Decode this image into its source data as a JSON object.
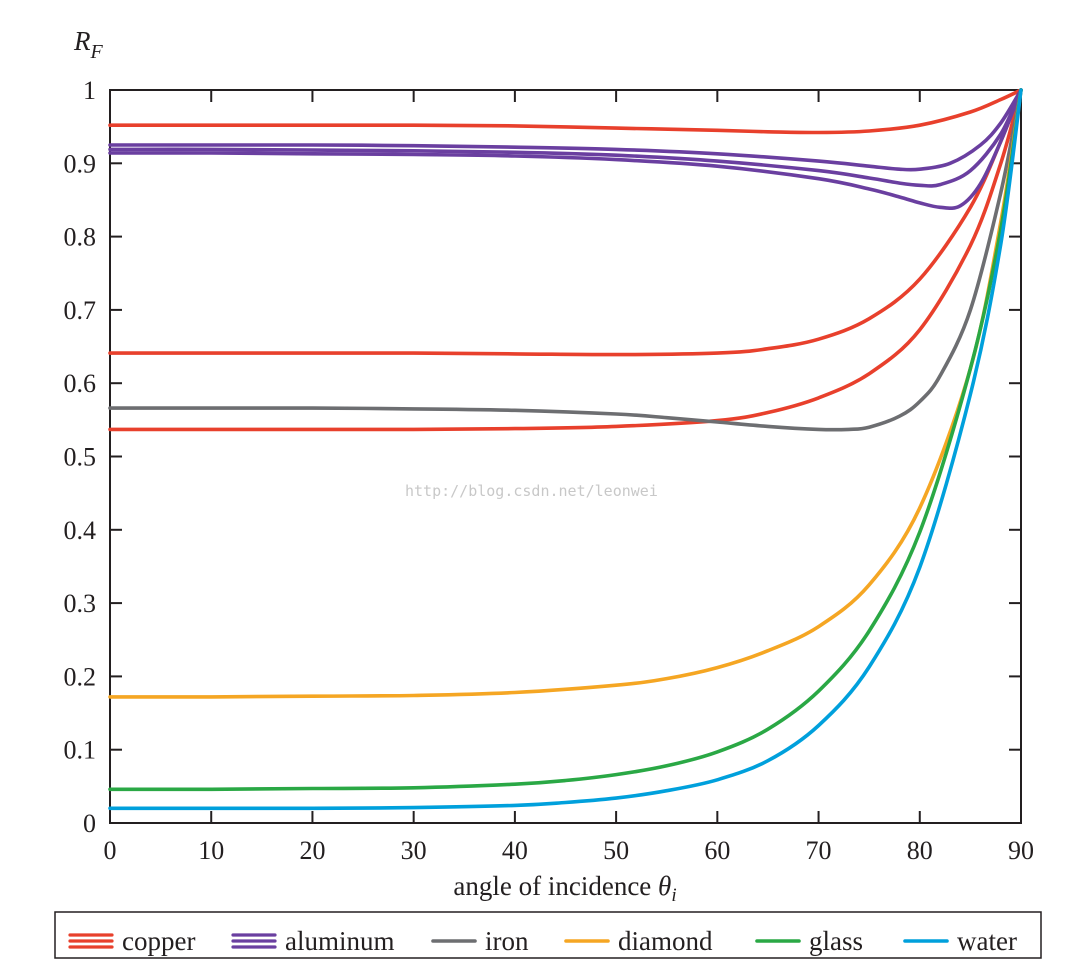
{
  "chart_data": {
    "type": "line",
    "ylabel_main": "R",
    "ylabel_sub": "F",
    "xlabel_main": "angle of incidence ",
    "xlabel_theta": "θ",
    "xlabel_sub": "i",
    "xlim": [
      0,
      90
    ],
    "ylim": [
      0,
      1
    ],
    "x_ticks": [
      "0",
      "10",
      "20",
      "30",
      "40",
      "50",
      "60",
      "70",
      "80",
      "90"
    ],
    "y_ticks": [
      "0",
      "0.1",
      "0.2",
      "0.3",
      "0.4",
      "0.5",
      "0.6",
      "0.7",
      "0.8",
      "0.9",
      "1"
    ],
    "grid": false,
    "legend_position": "bottom",
    "watermark": "http://blog.csdn.net/leonwei",
    "series": [
      {
        "name": "copper",
        "color": "#e8402c",
        "x": [
          0,
          10,
          20,
          30,
          40,
          50,
          60,
          65,
          70,
          75,
          80,
          85,
          88,
          90
        ],
        "values": [
          0.952,
          0.952,
          0.952,
          0.952,
          0.951,
          0.948,
          0.945,
          0.943,
          0.942,
          0.944,
          0.952,
          0.97,
          0.987,
          1.0
        ]
      },
      {
        "name": "copper",
        "color": "#e8402c",
        "x": [
          0,
          10,
          20,
          30,
          40,
          50,
          60,
          65,
          70,
          75,
          80,
          85,
          88,
          90
        ],
        "values": [
          0.641,
          0.641,
          0.641,
          0.641,
          0.64,
          0.639,
          0.641,
          0.647,
          0.66,
          0.688,
          0.742,
          0.84,
          0.93,
          1.0
        ]
      },
      {
        "name": "copper",
        "color": "#e8402c",
        "x": [
          0,
          10,
          20,
          30,
          40,
          50,
          60,
          65,
          70,
          75,
          80,
          85,
          88,
          90
        ],
        "values": [
          0.537,
          0.537,
          0.537,
          0.537,
          0.538,
          0.541,
          0.549,
          0.56,
          0.58,
          0.613,
          0.673,
          0.788,
          0.9,
          1.0
        ]
      },
      {
        "name": "aluminum",
        "color": "#6a3fa0",
        "x": [
          0,
          10,
          20,
          30,
          40,
          50,
          60,
          70,
          75,
          78,
          80,
          83,
          86,
          88,
          90
        ],
        "values": [
          0.925,
          0.925,
          0.925,
          0.924,
          0.922,
          0.919,
          0.913,
          0.903,
          0.896,
          0.892,
          0.892,
          0.9,
          0.925,
          0.955,
          1.0
        ]
      },
      {
        "name": "aluminum",
        "color": "#6a3fa0",
        "x": [
          0,
          10,
          20,
          30,
          40,
          50,
          60,
          70,
          75,
          78,
          80,
          82,
          85,
          88,
          90
        ],
        "values": [
          0.919,
          0.919,
          0.918,
          0.917,
          0.915,
          0.911,
          0.903,
          0.89,
          0.88,
          0.873,
          0.87,
          0.871,
          0.89,
          0.94,
          1.0
        ]
      },
      {
        "name": "aluminum",
        "color": "#6a3fa0",
        "x": [
          0,
          10,
          20,
          30,
          40,
          50,
          60,
          70,
          75,
          78,
          80,
          82,
          84,
          86,
          88,
          90
        ],
        "values": [
          0.914,
          0.914,
          0.913,
          0.912,
          0.91,
          0.905,
          0.896,
          0.879,
          0.865,
          0.854,
          0.846,
          0.84,
          0.842,
          0.872,
          0.93,
          1.0
        ]
      },
      {
        "name": "iron",
        "color": "#6d6e71",
        "x": [
          0,
          10,
          20,
          30,
          40,
          50,
          55,
          60,
          65,
          70,
          73,
          75,
          78,
          80,
          82,
          85,
          88,
          90
        ],
        "values": [
          0.566,
          0.566,
          0.566,
          0.565,
          0.563,
          0.558,
          0.553,
          0.547,
          0.541,
          0.537,
          0.537,
          0.54,
          0.555,
          0.575,
          0.61,
          0.7,
          0.86,
          1.0
        ]
      },
      {
        "name": "diamond",
        "color": "#f5a623",
        "x": [
          0,
          10,
          20,
          30,
          40,
          50,
          55,
          60,
          65,
          70,
          75,
          80,
          85,
          88,
          90
        ],
        "values": [
          0.172,
          0.172,
          0.173,
          0.174,
          0.178,
          0.188,
          0.197,
          0.212,
          0.235,
          0.268,
          0.325,
          0.43,
          0.62,
          0.82,
          1.0
        ]
      },
      {
        "name": "glass",
        "color": "#2aa845",
        "x": [
          0,
          10,
          20,
          30,
          40,
          45,
          50,
          55,
          60,
          65,
          70,
          75,
          80,
          85,
          88,
          90
        ],
        "values": [
          0.046,
          0.046,
          0.047,
          0.048,
          0.053,
          0.058,
          0.066,
          0.078,
          0.097,
          0.128,
          0.18,
          0.262,
          0.397,
          0.62,
          0.81,
          1.0
        ]
      },
      {
        "name": "water",
        "color": "#00a0dc",
        "x": [
          0,
          10,
          20,
          30,
          40,
          45,
          50,
          55,
          60,
          65,
          70,
          75,
          80,
          85,
          88,
          90
        ],
        "values": [
          0.02,
          0.02,
          0.02,
          0.021,
          0.024,
          0.028,
          0.034,
          0.044,
          0.059,
          0.085,
          0.133,
          0.213,
          0.349,
          0.585,
          0.79,
          1.0
        ]
      }
    ],
    "legend": [
      {
        "label": "copper",
        "color": "#e8402c",
        "lines": 3
      },
      {
        "label": "aluminum",
        "color": "#6a3fa0",
        "lines": 3
      },
      {
        "label": "iron",
        "color": "#6d6e71",
        "lines": 1
      },
      {
        "label": "diamond",
        "color": "#f5a623",
        "lines": 1
      },
      {
        "label": "glass",
        "color": "#2aa845",
        "lines": 1
      },
      {
        "label": "water",
        "color": "#00a0dc",
        "lines": 1
      }
    ]
  }
}
